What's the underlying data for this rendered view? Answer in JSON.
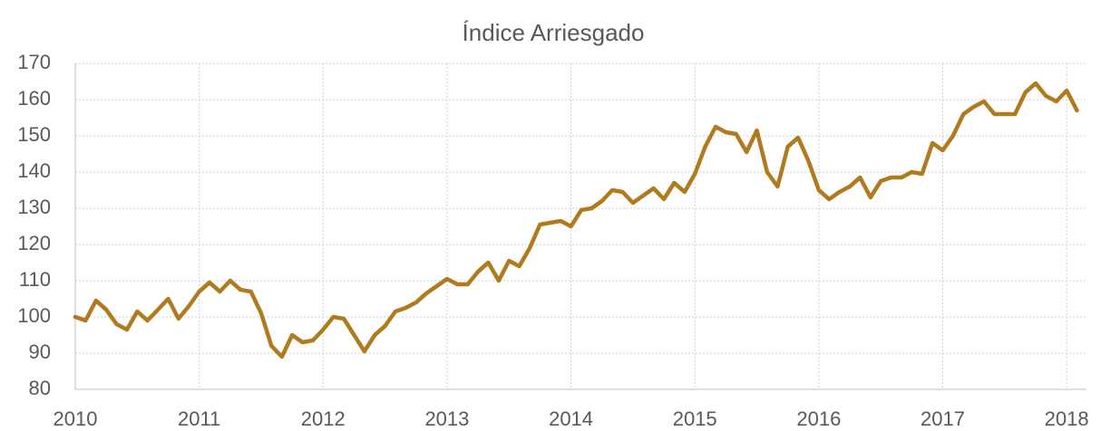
{
  "chart_data": {
    "type": "line",
    "title": "Índice Arriesgado",
    "x": [
      2010,
      2010.083,
      2010.167,
      2010.25,
      2010.333,
      2010.417,
      2010.5,
      2010.583,
      2010.667,
      2010.75,
      2010.833,
      2010.917,
      2011,
      2011.083,
      2011.167,
      2011.25,
      2011.333,
      2011.417,
      2011.5,
      2011.583,
      2011.667,
      2011.75,
      2011.833,
      2011.917,
      2012,
      2012.083,
      2012.167,
      2012.25,
      2012.333,
      2012.417,
      2012.5,
      2012.583,
      2012.667,
      2012.75,
      2012.833,
      2012.917,
      2013,
      2013.083,
      2013.167,
      2013.25,
      2013.333,
      2013.417,
      2013.5,
      2013.583,
      2013.667,
      2013.75,
      2013.833,
      2013.917,
      2014,
      2014.083,
      2014.167,
      2014.25,
      2014.333,
      2014.417,
      2014.5,
      2014.583,
      2014.667,
      2014.75,
      2014.833,
      2014.917,
      2015,
      2015.083,
      2015.167,
      2015.25,
      2015.333,
      2015.417,
      2015.5,
      2015.583,
      2015.667,
      2015.75,
      2015.833,
      2015.917,
      2016,
      2016.083,
      2016.167,
      2016.25,
      2016.333,
      2016.417,
      2016.5,
      2016.583,
      2016.667,
      2016.75,
      2016.833,
      2016.917,
      2017,
      2017.083,
      2017.167,
      2017.25,
      2017.333,
      2017.417,
      2017.5,
      2017.583,
      2017.667,
      2017.75,
      2017.833,
      2017.917,
      2018,
      2018.083
    ],
    "series": [
      {
        "name": "Índice Arriesgado",
        "color": "#b07a1e",
        "values": [
          100,
          99,
          104.5,
          102,
          98,
          96.5,
          101.5,
          99,
          102,
          105,
          99.5,
          103,
          107,
          109.5,
          107,
          110,
          107.5,
          107,
          101,
          92,
          89,
          95,
          93,
          93.5,
          96.5,
          100,
          99.5,
          95,
          90.5,
          95,
          97.5,
          101.5,
          102.5,
          104,
          106.5,
          108.5,
          110.5,
          109,
          109,
          112.5,
          115,
          110,
          115.5,
          114,
          119,
          125.5,
          126,
          126.5,
          125,
          129.5,
          130,
          132,
          135,
          134.5,
          131.5,
          133.5,
          135.5,
          132.5,
          137,
          134.5,
          139.5,
          147,
          152.5,
          151,
          150.5,
          145.5,
          151.5,
          140,
          136,
          147,
          149.5,
          143,
          135,
          132.5,
          134.5,
          136,
          138.5,
          133,
          137.5,
          138.5,
          138.5,
          140,
          139.5,
          148,
          146,
          150,
          156,
          158,
          159.5,
          156,
          156,
          156,
          162,
          164.5,
          161,
          159.5,
          162.5,
          157
        ]
      }
    ],
    "xlim": [
      2010,
      2018.16
    ],
    "xticks": [
      2010,
      2011,
      2012,
      2013,
      2014,
      2015,
      2016,
      2017,
      2018
    ],
    "ylim": [
      80,
      170
    ],
    "yticks": [
      80,
      90,
      100,
      110,
      120,
      130,
      140,
      150,
      160,
      170
    ],
    "grid": true
  }
}
